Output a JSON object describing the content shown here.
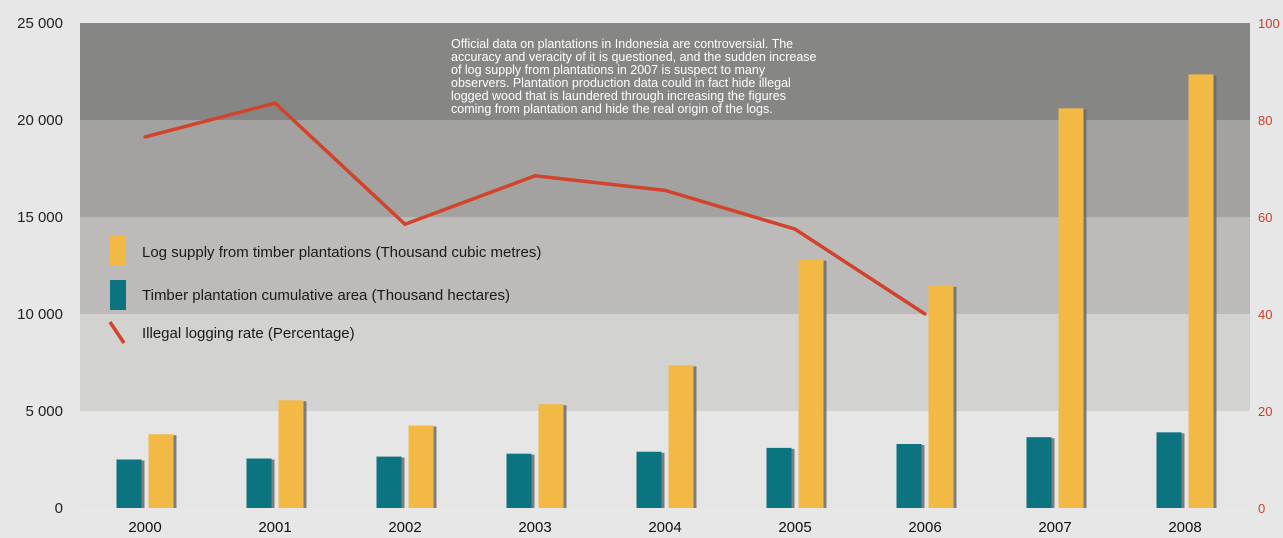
{
  "chart_data": {
    "type": "bar",
    "categories": [
      "2000",
      "2001",
      "2002",
      "2003",
      "2004",
      "2005",
      "2006",
      "2007",
      "2008"
    ],
    "series": [
      {
        "name": "Timber plantation cumulative area (Thousand hectares)",
        "type": "bar",
        "axis": "left",
        "color": "#0b7480",
        "values": [
          2500,
          2550,
          2650,
          2800,
          2900,
          3100,
          3300,
          3650,
          3900
        ]
      },
      {
        "name": "Log supply from timber plantations (Thousand cubic metres)",
        "type": "bar",
        "axis": "left",
        "color": "#f2b945",
        "values": [
          3800,
          5550,
          4250,
          5350,
          7350,
          12800,
          11450,
          20600,
          22350
        ]
      },
      {
        "name": "Illegal logging rate (Percentage)",
        "type": "line",
        "axis": "right",
        "color": "#d2432b",
        "values": [
          76.5,
          83.5,
          58.5,
          68.5,
          65.5,
          57.5,
          40,
          null,
          null
        ]
      }
    ],
    "y_left": {
      "ylim": [
        0,
        25000
      ],
      "ticks": [
        0,
        5000,
        10000,
        15000,
        20000,
        25000
      ],
      "tick_labels": [
        "0",
        "5 000",
        "10 000",
        "15 000",
        "20 000",
        "25 000"
      ]
    },
    "y_right": {
      "ylim": [
        0,
        100
      ],
      "ticks": [
        0,
        20,
        40,
        60,
        80,
        100
      ],
      "tick_labels": [
        "0",
        "20",
        "40",
        "60",
        "80",
        "100"
      ],
      "color": "#c8402a"
    },
    "background_bands": [
      "#e6e6e6",
      "#d2d2d1",
      "#bcbbba",
      "#a3a2a0",
      "#868685"
    ],
    "legend_position": "middle-left",
    "annotation": {
      "lines": [
        "Official data on plantations in Indonesia are controversial. The",
        "accuracy and veracity of it is questioned, and the sudden increase",
        "of log supply from plantations in 2007 is suspect to many",
        "observers. Plantation production data could in fact hide illegal",
        "logged wood that is laundered through increasing the figures",
        "coming from plantation and hide the real origin of the logs."
      ]
    }
  }
}
